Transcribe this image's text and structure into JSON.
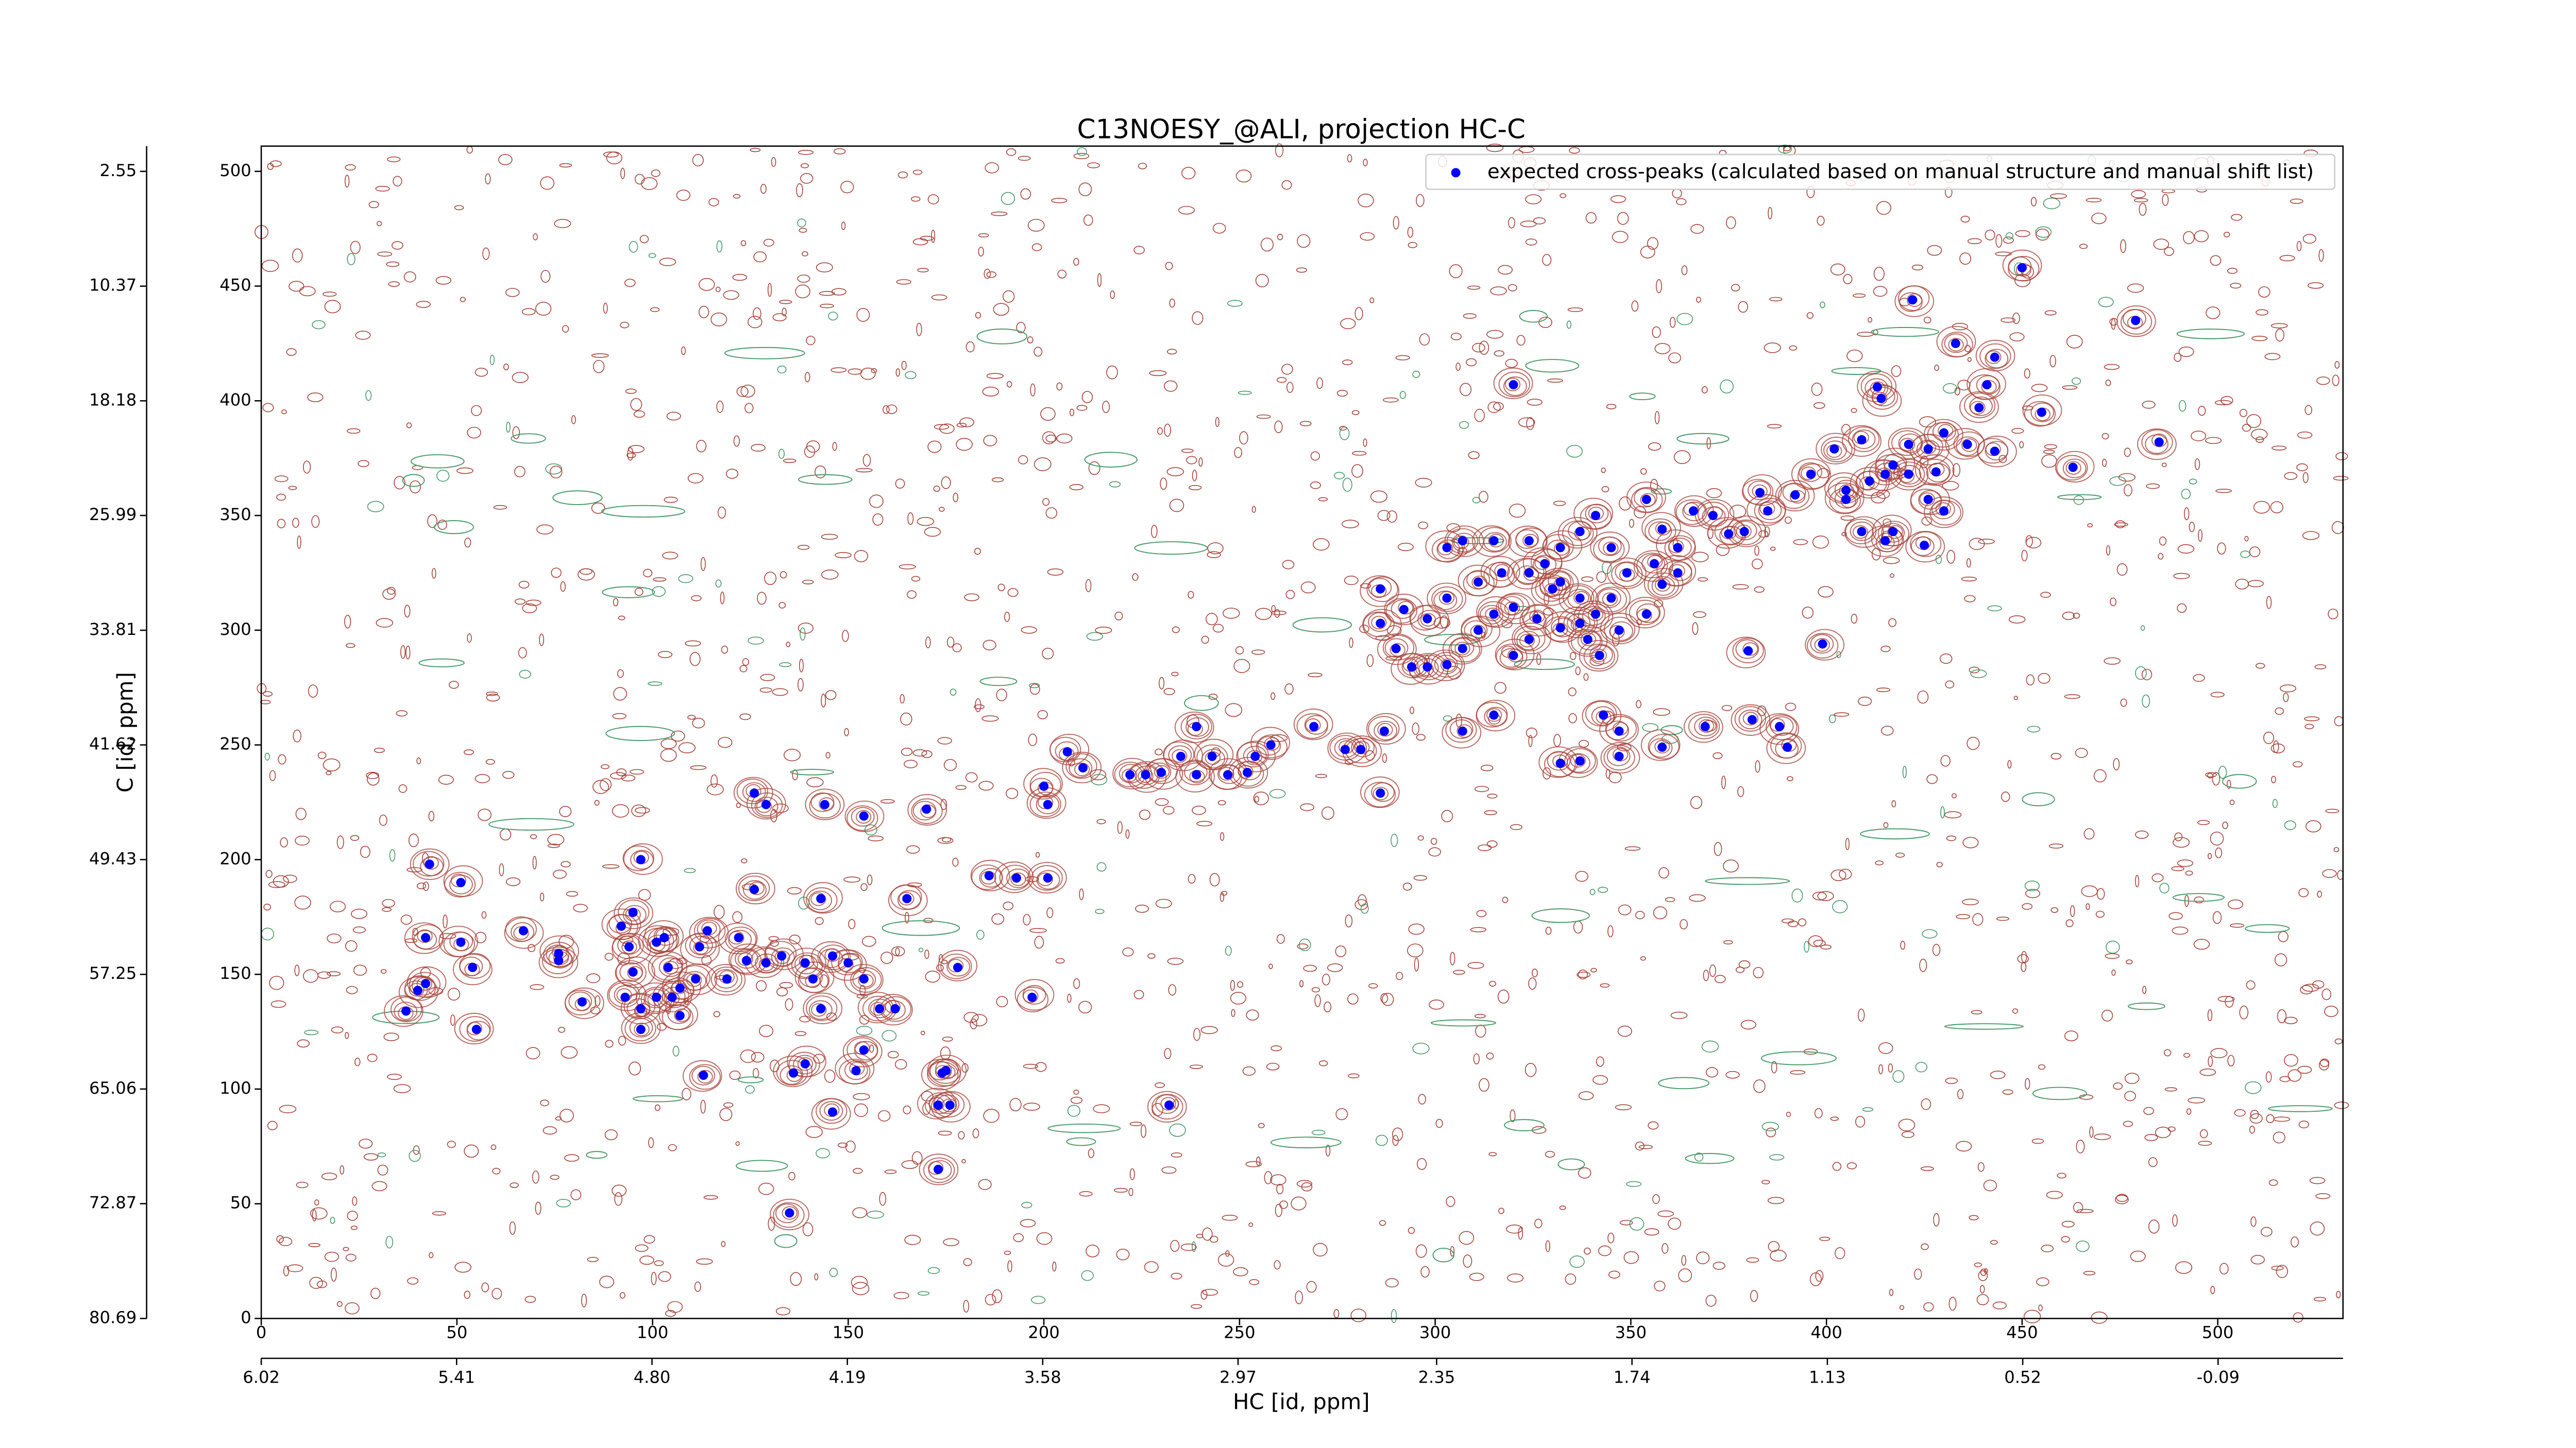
{
  "chart_data": {
    "type": "scatter",
    "title": "C13NOESY_@ALI, projection HC-C",
    "xlabel": "HC [id, ppm]",
    "ylabel": "C [id, ppm]",
    "xlim": [
      0,
      532
    ],
    "ylim": [
      0,
      511
    ],
    "xticks": [
      0,
      50,
      100,
      150,
      200,
      250,
      300,
      350,
      400,
      450,
      500
    ],
    "yticks": [
      0,
      50,
      100,
      150,
      200,
      250,
      300,
      350,
      400,
      450,
      500
    ],
    "x2lim": [
      6.02,
      -0.48
    ],
    "x2ticks": [
      6.02,
      5.41,
      {
        "value": 4.8,
        "label": "4.80"
      },
      4.19,
      3.58,
      2.97,
      2.35,
      1.74,
      1.13,
      0.52,
      -0.09
    ],
    "y2lim": [
      80.69,
      0.83
    ],
    "y2ticks": [
      80.69,
      72.87,
      65.06,
      57.25,
      49.43,
      41.62,
      33.81,
      25.99,
      18.18,
      10.37,
      2.55
    ],
    "legend": "upper right",
    "series": [
      {
        "name": "expected cross-peaks (calculated based on manual structure and manual shift list)",
        "color": "#0000ff",
        "x": [
          450,
          422,
          479,
          433,
          443,
          320,
          441,
          439,
          413,
          414,
          455,
          485,
          463,
          402,
          409,
          421,
          426,
          430,
          436,
          443,
          417,
          411,
          405,
          415,
          421,
          428,
          396,
          392,
          383,
          405,
          426,
          430,
          417,
          409,
          415,
          425,
          385,
          379,
          375,
          371,
          366,
          358,
          362,
          354,
          356,
          345,
          341,
          337,
          332,
          328,
          324,
          315,
          307,
          303,
          332,
          337,
          341,
          345,
          349,
          358,
          362,
          354,
          347,
          339,
          332,
          326,
          320,
          315,
          311,
          307,
          303,
          298,
          294,
          290,
          286,
          286,
          292,
          298,
          303,
          311,
          317,
          324,
          330,
          337,
          342,
          324,
          320,
          380,
          399,
          369,
          381,
          388,
          390,
          343,
          347,
          358,
          347,
          337,
          332,
          315,
          307,
          287,
          286,
          277,
          281,
          269,
          258,
          254,
          252,
          247,
          243,
          239,
          235,
          230,
          226,
          222,
          239,
          206,
          210,
          200,
          201,
          170,
          154,
          144,
          126,
          129,
          186,
          193,
          201,
          126,
          143,
          165,
          43,
          51,
          42,
          51,
          54,
          67,
          76,
          76,
          82,
          92,
          95,
          94,
          95,
          93,
          97,
          103,
          104,
          105,
          107,
          97,
          101,
          114,
          112,
          111,
          119,
          122,
          124,
          129,
          133,
          139,
          141,
          146,
          150,
          154,
          158,
          162,
          143,
          154,
          136,
          146,
          139,
          152,
          174,
          175,
          176,
          173,
          178,
          197,
          232,
          173,
          135,
          113,
          107,
          37,
          40,
          42,
          55,
          97,
          101
        ],
        "y": [
          458,
          444,
          435,
          425,
          419,
          407,
          407,
          397,
          406,
          401,
          395,
          382,
          371,
          379,
          383,
          381,
          379,
          386,
          381,
          378,
          372,
          365,
          361,
          368,
          368,
          369,
          368,
          359,
          360,
          357,
          357,
          352,
          343,
          343,
          339,
          337,
          352,
          343,
          342,
          350,
          352,
          344,
          336,
          357,
          329,
          336,
          350,
          343,
          336,
          329,
          339,
          339,
          339,
          336,
          321,
          314,
          307,
          314,
          325,
          320,
          325,
          307,
          300,
          296,
          301,
          305,
          310,
          307,
          300,
          292,
          285,
          284,
          284,
          292,
          303,
          318,
          309,
          305,
          314,
          321,
          325,
          325,
          318,
          303,
          289,
          296,
          289,
          291,
          294,
          258,
          261,
          258,
          249,
          263,
          256,
          249,
          245,
          243,
          242,
          263,
          256,
          256,
          229,
          248,
          248,
          258,
          250,
          245,
          238,
          237,
          245,
          258,
          245,
          238,
          237,
          237,
          237,
          247,
          240,
          232,
          224,
          222,
          219,
          224,
          229,
          224,
          193,
          192,
          192,
          187,
          183,
          183,
          198,
          190,
          166,
          164,
          153,
          169,
          159,
          156,
          138,
          171,
          177,
          162,
          151,
          140,
          135,
          166,
          153,
          140,
          132,
          126,
          140,
          169,
          162,
          148,
          148,
          166,
          156,
          155,
          158,
          155,
          148,
          158,
          155,
          148,
          135,
          135,
          135,
          117,
          107,
          90,
          111,
          108,
          107,
          108,
          93,
          93,
          153,
          140,
          93,
          65,
          46,
          106,
          144,
          134,
          143,
          146,
          126,
          200,
          164
        ]
      }
    ]
  }
}
